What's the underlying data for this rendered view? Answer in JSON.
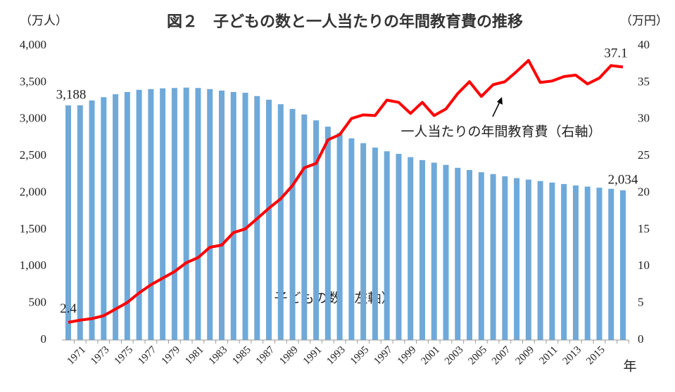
{
  "chart_data": {
    "type": "bar_line",
    "title": "図２　子どもの数と一人当たりの年間教育費の推移",
    "y_label": "（万人）",
    "y2_label": "（万円）",
    "x_label": "年",
    "categories": [
      null,
      1971,
      null,
      1973,
      null,
      1975,
      null,
      1977,
      null,
      1979,
      null,
      1981,
      null,
      1983,
      null,
      1985,
      null,
      1987,
      null,
      1989,
      null,
      1991,
      null,
      1993,
      null,
      1995,
      null,
      1997,
      null,
      1999,
      null,
      2001,
      null,
      2003,
      null,
      2005,
      null,
      2007,
      null,
      2009,
      null,
      2011,
      null,
      2013,
      null,
      2015,
      null,
      null
    ],
    "series": [
      {
        "name": "子どもの数（左軸）",
        "type": "bar",
        "color": "#6fa9d9",
        "values": [
          3188,
          3190,
          3255,
          3300,
          3340,
          3370,
          3400,
          3410,
          3420,
          3425,
          3430,
          3425,
          3410,
          3390,
          3370,
          3360,
          3315,
          3265,
          3205,
          3140,
          3065,
          2985,
          2900,
          2815,
          2740,
          2675,
          2615,
          2565,
          2530,
          2485,
          2445,
          2410,
          2380,
          2340,
          2310,
          2280,
          2255,
          2225,
          2200,
          2180,
          2160,
          2140,
          2120,
          2100,
          2085,
          2070,
          2055,
          2034
        ],
        "value_labels": [
          "3,188",
          null,
          null,
          null,
          null,
          null,
          null,
          null,
          null,
          null,
          null,
          null,
          null,
          null,
          null,
          null,
          null,
          null,
          null,
          null,
          null,
          null,
          null,
          null,
          null,
          null,
          null,
          null,
          null,
          null,
          null,
          null,
          null,
          null,
          null,
          null,
          null,
          null,
          null,
          null,
          null,
          null,
          null,
          null,
          null,
          null,
          null,
          "2,034"
        ]
      },
      {
        "name": "一人当たりの年間教育費（右軸）",
        "type": "line",
        "axis": "y2",
        "color": "#ff0000",
        "values": [
          2.4,
          2.7,
          2.9,
          3.3,
          4.2,
          5.1,
          6.4,
          7.5,
          8.4,
          9.3,
          10.5,
          11.2,
          12.6,
          12.9,
          14.6,
          15.1,
          16.5,
          17.9,
          19.2,
          21.0,
          23.4,
          24.0,
          27.2,
          27.9,
          30.1,
          30.6,
          30.5,
          32.6,
          32.3,
          30.8,
          32.3,
          30.5,
          31.4,
          33.5,
          35.1,
          33.1,
          34.7,
          35.1,
          36.5,
          38.0,
          35.0,
          35.2,
          35.8,
          36.0,
          34.8,
          35.6,
          37.3,
          37.1
        ],
        "value_labels": [
          "2.4",
          null,
          null,
          null,
          null,
          null,
          null,
          null,
          null,
          null,
          null,
          null,
          null,
          null,
          null,
          null,
          null,
          null,
          null,
          null,
          null,
          null,
          null,
          null,
          null,
          null,
          null,
          null,
          null,
          null,
          null,
          null,
          null,
          null,
          null,
          null,
          null,
          null,
          null,
          null,
          null,
          null,
          null,
          null,
          null,
          null,
          null,
          "37.1"
        ]
      }
    ],
    "ylim": [
      0,
      4000
    ],
    "yticks": [
      0,
      500,
      {
        "value": 1000,
        "label": "1,000"
      },
      {
        "value": 1500,
        "label": "1,500"
      },
      {
        "value": 2000,
        "label": "2,000"
      },
      {
        "value": 2500,
        "label": "2,500"
      },
      {
        "value": 3000,
        "label": "3,000"
      },
      {
        "value": 3500,
        "label": "3,500"
      },
      {
        "value": 4000,
        "label": "4,000"
      }
    ],
    "y2lim": [
      0,
      40
    ],
    "y2ticks": [
      0,
      5,
      10,
      15,
      20,
      25,
      30,
      35,
      40
    ],
    "grid": false
  }
}
